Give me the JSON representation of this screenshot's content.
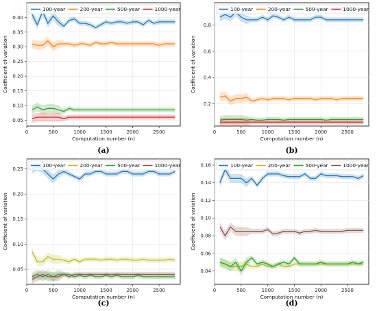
{
  "chart_data": [
    {
      "type": "line",
      "panel_label": "(a)",
      "xlabel": "Computation number (n)",
      "ylabel": "Coefficient of variation",
      "xlim": [
        0,
        2900
      ],
      "ylim": [
        0.03,
        0.45
      ],
      "xticks": [
        "0",
        "500",
        "1000",
        "1500",
        "2000",
        "2500"
      ],
      "yticks": [
        "0.05",
        "0.10",
        "0.15",
        "0.20",
        "0.25",
        "0.30",
        "0.35",
        "0.40"
      ],
      "legend_position": "top",
      "grid": true,
      "x": [
        100,
        200,
        300,
        400,
        500,
        600,
        700,
        800,
        900,
        1000,
        1100,
        1200,
        1300,
        1400,
        1500,
        1600,
        1700,
        1800,
        1900,
        2000,
        2100,
        2200,
        2300,
        2400,
        2500,
        2600,
        2700,
        2800
      ],
      "series": [
        {
          "name": "100-year",
          "color": "#1f77b4",
          "values": [
            0.41,
            0.375,
            0.42,
            0.38,
            0.405,
            0.385,
            0.37,
            0.39,
            0.395,
            0.38,
            0.38,
            0.375,
            0.365,
            0.375,
            0.385,
            0.38,
            0.385,
            0.385,
            0.38,
            0.385,
            0.385,
            0.375,
            0.39,
            0.38,
            0.385,
            0.385,
            0.385,
            0.385
          ]
        },
        {
          "name": "200-year",
          "color": "#ff7f0e",
          "values": [
            0.31,
            0.305,
            0.305,
            0.32,
            0.3,
            0.31,
            0.31,
            0.31,
            0.305,
            0.31,
            0.31,
            0.305,
            0.315,
            0.31,
            0.31,
            0.315,
            0.31,
            0.31,
            0.31,
            0.31,
            0.31,
            0.31,
            0.31,
            0.31,
            0.305,
            0.31,
            0.31,
            0.31
          ]
        },
        {
          "name": "500-year",
          "color": "#2ca02c",
          "values": [
            0.085,
            0.095,
            0.085,
            0.09,
            0.09,
            0.085,
            0.08,
            0.09,
            0.085,
            0.085,
            0.085,
            0.085,
            0.085,
            0.085,
            0.085,
            0.085,
            0.085,
            0.085,
            0.085,
            0.085,
            0.085,
            0.085,
            0.085,
            0.085,
            0.085,
            0.085,
            0.085,
            0.085
          ]
        },
        {
          "name": "1000-year",
          "color": "#d62728",
          "values": [
            0.055,
            0.06,
            0.06,
            0.06,
            0.06,
            0.06,
            0.055,
            0.06,
            0.06,
            0.06,
            0.06,
            0.06,
            0.06,
            0.06,
            0.06,
            0.06,
            0.06,
            0.06,
            0.06,
            0.06,
            0.06,
            0.06,
            0.06,
            0.06,
            0.06,
            0.06,
            0.06,
            0.06
          ]
        }
      ]
    },
    {
      "type": "line",
      "panel_label": "(b)",
      "xlabel": "Computation number (n)",
      "ylabel": "Coefficient of variation",
      "xlim": [
        0,
        2900
      ],
      "ylim": [
        0.03,
        0.97
      ],
      "xticks": [
        "0",
        "500",
        "1000",
        "1500",
        "2000",
        "2500"
      ],
      "yticks": [
        "0.2",
        "0.4",
        "0.6",
        "0.8"
      ],
      "legend_position": "top",
      "grid": true,
      "x": [
        100,
        200,
        300,
        400,
        500,
        600,
        700,
        800,
        900,
        1000,
        1100,
        1200,
        1300,
        1400,
        1500,
        1600,
        1700,
        1800,
        1900,
        2000,
        2100,
        2200,
        2300,
        2400,
        2500,
        2600,
        2700,
        2800
      ],
      "series": [
        {
          "name": "100-year",
          "color": "#1f77b4",
          "values": [
            0.86,
            0.88,
            0.86,
            0.9,
            0.86,
            0.84,
            0.84,
            0.84,
            0.86,
            0.84,
            0.87,
            0.86,
            0.84,
            0.86,
            0.84,
            0.84,
            0.84,
            0.84,
            0.86,
            0.86,
            0.84,
            0.84,
            0.84,
            0.84,
            0.84,
            0.84,
            0.84,
            0.84
          ]
        },
        {
          "name": "200-year",
          "color": "#ff7f0e",
          "values": [
            0.25,
            0.26,
            0.22,
            0.24,
            0.24,
            0.25,
            0.22,
            0.23,
            0.24,
            0.23,
            0.24,
            0.24,
            0.24,
            0.23,
            0.24,
            0.24,
            0.24,
            0.24,
            0.23,
            0.24,
            0.24,
            0.24,
            0.23,
            0.24,
            0.24,
            0.24,
            0.24,
            0.24
          ]
        },
        {
          "name": "500-year",
          "color": "#2ca02c",
          "values": [
            0.075,
            0.08,
            0.08,
            0.08,
            0.08,
            0.075,
            0.08,
            0.075,
            0.075,
            0.08,
            0.08,
            0.08,
            0.075,
            0.08,
            0.08,
            0.08,
            0.08,
            0.08,
            0.08,
            0.08,
            0.075,
            0.08,
            0.08,
            0.08,
            0.08,
            0.08,
            0.08,
            0.08
          ]
        },
        {
          "name": "1000-year",
          "color": "#d62728",
          "values": [
            0.06,
            0.06,
            0.06,
            0.06,
            0.06,
            0.06,
            0.06,
            0.06,
            0.06,
            0.06,
            0.06,
            0.06,
            0.06,
            0.06,
            0.06,
            0.06,
            0.06,
            0.06,
            0.06,
            0.06,
            0.06,
            0.06,
            0.06,
            0.06,
            0.06,
            0.06,
            0.06,
            0.06
          ]
        }
      ]
    },
    {
      "type": "line",
      "panel_label": "(c)",
      "xlabel": "Computation number (n)",
      "ylabel": "Coefficient of variation",
      "xlim": [
        0,
        2900
      ],
      "ylim": [
        0.02,
        0.27
      ],
      "xticks": [
        "0",
        "500",
        "1000",
        "1500",
        "2000",
        "2500"
      ],
      "yticks": [
        "0.05",
        "0.10",
        "0.15",
        "0.20",
        "0.25"
      ],
      "legend_position": "top",
      "grid": true,
      "x": [
        100,
        200,
        300,
        400,
        500,
        600,
        700,
        800,
        900,
        1000,
        1100,
        1200,
        1300,
        1400,
        1500,
        1600,
        1700,
        1800,
        1900,
        2000,
        2100,
        2200,
        2300,
        2400,
        2500,
        2600,
        2700,
        2800
      ],
      "series": [
        {
          "name": "100-year",
          "color": "#1f77b4",
          "values": [
            0.25,
            0.255,
            0.25,
            0.24,
            0.23,
            0.24,
            0.245,
            0.24,
            0.235,
            0.23,
            0.24,
            0.24,
            0.245,
            0.245,
            0.24,
            0.24,
            0.24,
            0.245,
            0.245,
            0.24,
            0.24,
            0.24,
            0.245,
            0.245,
            0.24,
            0.24,
            0.24,
            0.245
          ]
        },
        {
          "name": "200-year",
          "color": "#bcbd22",
          "values": [
            0.085,
            0.065,
            0.065,
            0.075,
            0.07,
            0.07,
            0.068,
            0.065,
            0.07,
            0.065,
            0.07,
            0.07,
            0.07,
            0.068,
            0.07,
            0.07,
            0.068,
            0.07,
            0.07,
            0.068,
            0.068,
            0.07,
            0.068,
            0.068,
            0.068,
            0.068,
            0.07,
            0.068
          ]
        },
        {
          "name": "500-year",
          "color": "#2ca02c",
          "values": [
            0.035,
            0.04,
            0.035,
            0.04,
            0.035,
            0.04,
            0.04,
            0.04,
            0.035,
            0.038,
            0.035,
            0.038,
            0.035,
            0.035,
            0.038,
            0.035,
            0.038,
            0.035,
            0.035,
            0.035,
            0.038,
            0.035,
            0.035,
            0.035,
            0.035,
            0.035,
            0.035,
            0.035
          ]
        },
        {
          "name": "1000-year",
          "color": "#8c564b",
          "values": [
            0.03,
            0.035,
            0.04,
            0.035,
            0.035,
            0.035,
            0.04,
            0.035,
            0.04,
            0.04,
            0.04,
            0.04,
            0.04,
            0.04,
            0.04,
            0.04,
            0.04,
            0.04,
            0.04,
            0.04,
            0.04,
            0.04,
            0.04,
            0.04,
            0.04,
            0.04,
            0.04,
            0.04
          ]
        }
      ]
    },
    {
      "type": "line",
      "panel_label": "(d)",
      "xlabel": "Computation number (n)",
      "ylabel": "Coefficient of variation",
      "xlim": [
        0,
        2900
      ],
      "ylim": [
        0.025,
        0.167
      ],
      "xticks": [
        "0",
        "500",
        "1000",
        "1500",
        "2000",
        "2500"
      ],
      "yticks": [
        "0.04",
        "0.06",
        "0.08",
        "0.10",
        "0.12",
        "0.14",
        "0.16"
      ],
      "legend_position": "top",
      "grid": true,
      "x": [
        100,
        200,
        300,
        400,
        500,
        600,
        700,
        800,
        900,
        1000,
        1100,
        1200,
        1300,
        1400,
        1500,
        1600,
        1700,
        1800,
        1900,
        2000,
        2100,
        2200,
        2300,
        2400,
        2500,
        2600,
        2700,
        2800
      ],
      "series": [
        {
          "name": "100-year",
          "color": "#1f77b4",
          "values": [
            0.14,
            0.155,
            0.145,
            0.145,
            0.145,
            0.14,
            0.145,
            0.137,
            0.145,
            0.15,
            0.15,
            0.15,
            0.148,
            0.147,
            0.147,
            0.147,
            0.15,
            0.145,
            0.145,
            0.15,
            0.148,
            0.148,
            0.148,
            0.147,
            0.147,
            0.147,
            0.145,
            0.148
          ]
        },
        {
          "name": "200-year",
          "color": "#bcbd22",
          "values": [
            0.05,
            0.048,
            0.045,
            0.045,
            0.045,
            0.048,
            0.045,
            0.045,
            0.048,
            0.045,
            0.045,
            0.048,
            0.045,
            0.045,
            0.048,
            0.048,
            0.048,
            0.048,
            0.048,
            0.048,
            0.048,
            0.048,
            0.048,
            0.048,
            0.048,
            0.048,
            0.048,
            0.048
          ]
        },
        {
          "name": "500-year",
          "color": "#2ca02c",
          "values": [
            0.05,
            0.048,
            0.045,
            0.05,
            0.04,
            0.05,
            0.055,
            0.048,
            0.05,
            0.048,
            0.045,
            0.048,
            0.05,
            0.048,
            0.055,
            0.048,
            0.048,
            0.048,
            0.048,
            0.05,
            0.048,
            0.048,
            0.048,
            0.048,
            0.048,
            0.05,
            0.048,
            0.05
          ]
        },
        {
          "name": "1000-year",
          "color": "#8c564b",
          "values": [
            0.09,
            0.08,
            0.09,
            0.085,
            0.085,
            0.085,
            0.085,
            0.085,
            0.085,
            0.087,
            0.082,
            0.083,
            0.085,
            0.085,
            0.085,
            0.083,
            0.085,
            0.085,
            0.086,
            0.085,
            0.085,
            0.085,
            0.085,
            0.085,
            0.086,
            0.086,
            0.086,
            0.086
          ]
        }
      ]
    }
  ]
}
